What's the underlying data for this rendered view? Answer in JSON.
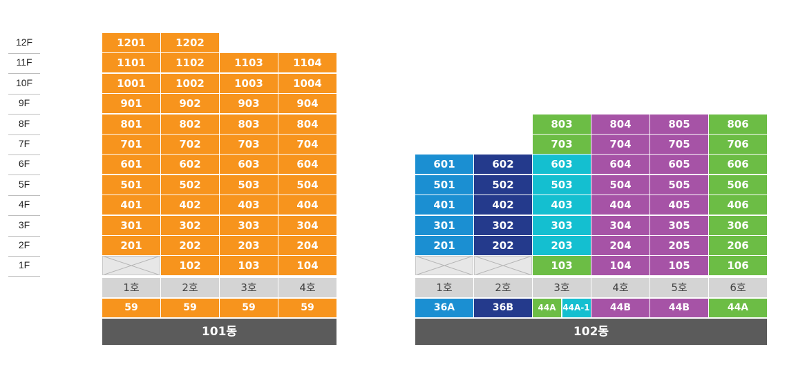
{
  "colors": {
    "orange": "#f7941d",
    "blue": "#1b8fd2",
    "navy": "#243a8c",
    "cyan": "#14bfd0",
    "green": "#6cbd45",
    "purple": "#a653a6",
    "ho_bg": "#d4d4d4",
    "name_bg": "#5b5b5b"
  },
  "floors": [
    "12F",
    "11F",
    "10F",
    "9F",
    "8F",
    "7F",
    "6F",
    "5F",
    "4F",
    "3F",
    "2F",
    "1F"
  ],
  "building_101": {
    "name": "101동",
    "hos": [
      "1호",
      "2호",
      "3호",
      "4호"
    ],
    "types": [
      {
        "label": "59",
        "color": "#f7941d"
      },
      {
        "label": "59",
        "color": "#f7941d"
      },
      {
        "label": "59",
        "color": "#f7941d"
      },
      {
        "label": "59",
        "color": "#f7941d"
      }
    ],
    "rows": [
      {
        "floor": "12F",
        "units": [
          "1201",
          "1202",
          null,
          null
        ]
      },
      {
        "floor": "11F",
        "units": [
          "1101",
          "1102",
          "1103",
          "1104"
        ]
      },
      {
        "floor": "10F",
        "units": [
          "1001",
          "1002",
          "1003",
          "1004"
        ]
      },
      {
        "floor": "9F",
        "units": [
          "901",
          "902",
          "903",
          "904"
        ]
      },
      {
        "floor": "8F",
        "units": [
          "801",
          "802",
          "803",
          "804"
        ]
      },
      {
        "floor": "7F",
        "units": [
          "701",
          "702",
          "703",
          "704"
        ]
      },
      {
        "floor": "6F",
        "units": [
          "601",
          "602",
          "603",
          "604"
        ]
      },
      {
        "floor": "5F",
        "units": [
          "501",
          "502",
          "503",
          "504"
        ]
      },
      {
        "floor": "4F",
        "units": [
          "401",
          "402",
          "403",
          "404"
        ]
      },
      {
        "floor": "3F",
        "units": [
          "301",
          "302",
          "303",
          "304"
        ]
      },
      {
        "floor": "2F",
        "units": [
          "201",
          "202",
          "203",
          "204"
        ]
      },
      {
        "floor": "1F",
        "units": [
          "X",
          "102",
          "103",
          "104"
        ]
      }
    ],
    "unit_colors": [
      [
        "#f7941d",
        "#f7941d",
        "#f7941d",
        "#f7941d"
      ]
    ]
  },
  "building_102": {
    "name": "102동",
    "hos": [
      "1호",
      "2호",
      "3호",
      "4호",
      "5호",
      "6호"
    ],
    "types": [
      {
        "label": "36A",
        "color": "#1b8fd2"
      },
      {
        "label": "36B",
        "color": "#243a8c"
      },
      {
        "label": "44A",
        "color": "#6cbd45",
        "half": true
      },
      {
        "label": "44A-1",
        "color": "#14bfd0",
        "half": true
      },
      {
        "label": "44B",
        "color": "#a653a6"
      },
      {
        "label": "44B",
        "color": "#a653a6"
      },
      {
        "label": "44A",
        "color": "#6cbd45"
      }
    ],
    "rows": [
      {
        "floor": "8F",
        "units": [
          null,
          null,
          "803",
          "804",
          "805",
          "806"
        ],
        "colors": [
          null,
          null,
          "#6cbd45",
          "#a653a6",
          "#a653a6",
          "#6cbd45"
        ]
      },
      {
        "floor": "7F",
        "units": [
          null,
          null,
          "703",
          "704",
          "705",
          "706"
        ],
        "colors": [
          null,
          null,
          "#6cbd45",
          "#a653a6",
          "#a653a6",
          "#6cbd45"
        ]
      },
      {
        "floor": "6F",
        "units": [
          "601",
          "602",
          "603",
          "604",
          "605",
          "606"
        ],
        "colors": [
          "#1b8fd2",
          "#243a8c",
          "#14bfd0",
          "#a653a6",
          "#a653a6",
          "#6cbd45"
        ]
      },
      {
        "floor": "5F",
        "units": [
          "501",
          "502",
          "503",
          "504",
          "505",
          "506"
        ],
        "colors": [
          "#1b8fd2",
          "#243a8c",
          "#14bfd0",
          "#a653a6",
          "#a653a6",
          "#6cbd45"
        ]
      },
      {
        "floor": "4F",
        "units": [
          "401",
          "402",
          "403",
          "404",
          "405",
          "406"
        ],
        "colors": [
          "#1b8fd2",
          "#243a8c",
          "#14bfd0",
          "#a653a6",
          "#a653a6",
          "#6cbd45"
        ]
      },
      {
        "floor": "3F",
        "units": [
          "301",
          "302",
          "303",
          "304",
          "305",
          "306"
        ],
        "colors": [
          "#1b8fd2",
          "#243a8c",
          "#14bfd0",
          "#a653a6",
          "#a653a6",
          "#6cbd45"
        ]
      },
      {
        "floor": "2F",
        "units": [
          "201",
          "202",
          "203",
          "204",
          "205",
          "206"
        ],
        "colors": [
          "#1b8fd2",
          "#243a8c",
          "#14bfd0",
          "#a653a6",
          "#a653a6",
          "#6cbd45"
        ]
      },
      {
        "floor": "1F",
        "units": [
          "X",
          "X",
          "103",
          "104",
          "105",
          "106"
        ],
        "colors": [
          null,
          null,
          "#6cbd45",
          "#a653a6",
          "#a653a6",
          "#6cbd45"
        ]
      }
    ]
  }
}
